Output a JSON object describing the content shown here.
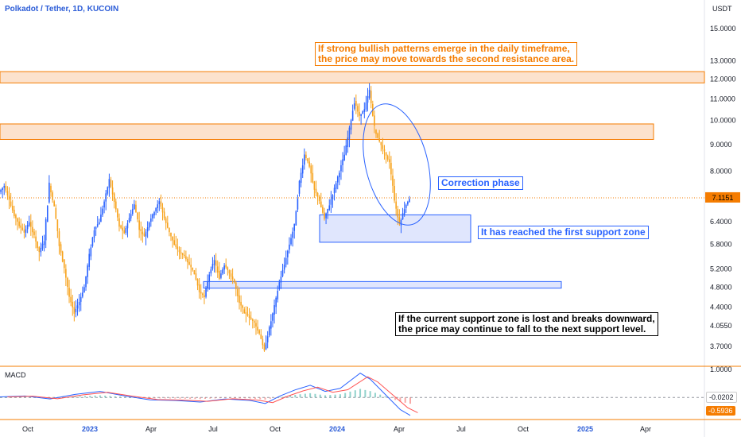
{
  "header": {
    "title": "Polkadot / Tether, 1D, KUCOIN",
    "currency": "USDT"
  },
  "colors": {
    "up": "#2962ff",
    "down": "#f7a21b",
    "orange_zone": "#fbd8bc",
    "orange_border": "#f57c00",
    "blue_zone": "#d5defc",
    "blue_border": "#2962ff",
    "macd_line": "#2962ff",
    "signal_line": "#ff5252"
  },
  "annotations": {
    "resistance_note_1": "If strong bullish patterns emerge in the daily timeframe,",
    "resistance_note_2": "the price may move towards the second resistance area.",
    "correction": "Correction phase",
    "support_reached": "It has reached the first support zone",
    "breakdown_note_1": "If the current support zone is lost and breaks downward,",
    "breakdown_note_2": "the price may continue to fall to the next support level."
  },
  "macd": {
    "label": "MACD",
    "value_macd": "-0.0202",
    "value_signal": "-0.5936"
  },
  "chart_data": {
    "type": "candlestick",
    "y_scale": "log",
    "ylim": [
      3.4,
      17
    ],
    "y_ticks": [
      15.0,
      13.0,
      12.0,
      11.0,
      10.0,
      9.0,
      8.0,
      7.1151,
      6.4,
      5.8,
      5.2,
      4.8,
      4.4,
      4.05,
      3.7
    ],
    "y_tick_labels": [
      "15.0000",
      "13.0000",
      "12.0000",
      "11.0000",
      "10.0000",
      "9.0000",
      "8.0000",
      "7.1151",
      "6.4000",
      "5.8000",
      "5.2000",
      "4.8000",
      "4.4000",
      "4.0550",
      "3.7000"
    ],
    "x_tick_labels": [
      "Oct",
      "2023",
      "Apr",
      "Jul",
      "Oct",
      "2024",
      "Apr",
      "Jul",
      "Oct",
      "2025",
      "Apr"
    ],
    "current_price": 7.1151,
    "zones": [
      {
        "name": "second-resistance",
        "low": 11.8,
        "high": 12.4,
        "color": "orange"
      },
      {
        "name": "first-resistance",
        "low": 9.2,
        "high": 9.85,
        "color": "orange"
      },
      {
        "name": "first-support",
        "low": 5.85,
        "high": 6.6,
        "color": "blue"
      },
      {
        "name": "next-support",
        "low": 4.78,
        "high": 4.92,
        "color": "blue"
      }
    ],
    "price_path": [
      [
        7.3,
        0
      ],
      [
        7.5,
        2
      ],
      [
        7.0,
        4
      ],
      [
        6.6,
        6
      ],
      [
        6.3,
        8
      ],
      [
        6.1,
        10
      ],
      [
        6.4,
        12
      ],
      [
        6.0,
        14
      ],
      [
        5.6,
        16
      ],
      [
        5.9,
        18
      ],
      [
        7.5,
        20
      ],
      [
        6.8,
        22
      ],
      [
        5.8,
        24
      ],
      [
        5.2,
        26
      ],
      [
        4.6,
        28
      ],
      [
        4.3,
        30
      ],
      [
        4.5,
        32
      ],
      [
        4.8,
        34
      ],
      [
        5.5,
        36
      ],
      [
        6.2,
        38
      ],
      [
        6.4,
        40
      ],
      [
        7.0,
        42
      ],
      [
        7.7,
        44
      ],
      [
        7.0,
        46
      ],
      [
        6.3,
        48
      ],
      [
        6.1,
        50
      ],
      [
        6.5,
        52
      ],
      [
        6.9,
        54
      ],
      [
        6.2,
        56
      ],
      [
        6.0,
        58
      ],
      [
        6.4,
        60
      ],
      [
        6.7,
        62
      ],
      [
        7.0,
        64
      ],
      [
        6.5,
        66
      ],
      [
        6.1,
        68
      ],
      [
        5.8,
        70
      ],
      [
        5.6,
        72
      ],
      [
        5.5,
        74
      ],
      [
        5.3,
        76
      ],
      [
        5.1,
        78
      ],
      [
        4.7,
        80
      ],
      [
        4.6,
        82
      ],
      [
        5.1,
        84
      ],
      [
        5.4,
        86
      ],
      [
        5.0,
        88
      ],
      [
        5.3,
        90
      ],
      [
        5.1,
        92
      ],
      [
        4.9,
        94
      ],
      [
        4.5,
        96
      ],
      [
        4.3,
        98
      ],
      [
        4.2,
        100
      ],
      [
        4.1,
        102
      ],
      [
        3.9,
        104
      ],
      [
        3.65,
        106
      ],
      [
        4.0,
        108
      ],
      [
        4.4,
        110
      ],
      [
        4.9,
        112
      ],
      [
        5.3,
        114
      ],
      [
        5.8,
        116
      ],
      [
        6.3,
        118
      ],
      [
        7.6,
        120
      ],
      [
        8.6,
        122
      ],
      [
        8.2,
        124
      ],
      [
        7.4,
        126
      ],
      [
        7.0,
        128
      ],
      [
        6.5,
        130
      ],
      [
        6.9,
        132
      ],
      [
        7.4,
        134
      ],
      [
        8.0,
        136
      ],
      [
        8.6,
        138
      ],
      [
        9.6,
        140
      ],
      [
        10.9,
        142
      ],
      [
        10.2,
        144
      ],
      [
        10.5,
        146
      ],
      [
        11.4,
        148
      ],
      [
        9.6,
        150
      ],
      [
        9.1,
        152
      ],
      [
        8.7,
        154
      ],
      [
        8.3,
        156
      ],
      [
        7.0,
        158
      ],
      [
        6.3,
        160
      ],
      [
        6.8,
        162
      ],
      [
        7.1,
        164
      ]
    ],
    "macd_series": [
      [
        0.02,
        0
      ],
      [
        0.05,
        10
      ],
      [
        -0.05,
        20
      ],
      [
        0.1,
        30
      ],
      [
        0.2,
        40
      ],
      [
        0.05,
        50
      ],
      [
        -0.08,
        60
      ],
      [
        -0.1,
        70
      ],
      [
        -0.15,
        80
      ],
      [
        -0.05,
        90
      ],
      [
        -0.1,
        100
      ],
      [
        -0.2,
        106
      ],
      [
        0.05,
        112
      ],
      [
        0.25,
        118
      ],
      [
        0.4,
        124
      ],
      [
        0.2,
        130
      ],
      [
        0.3,
        136
      ],
      [
        0.8,
        144
      ],
      [
        0.6,
        148
      ],
      [
        0.1,
        154
      ],
      [
        -0.4,
        160
      ],
      [
        -0.59,
        164
      ]
    ]
  }
}
